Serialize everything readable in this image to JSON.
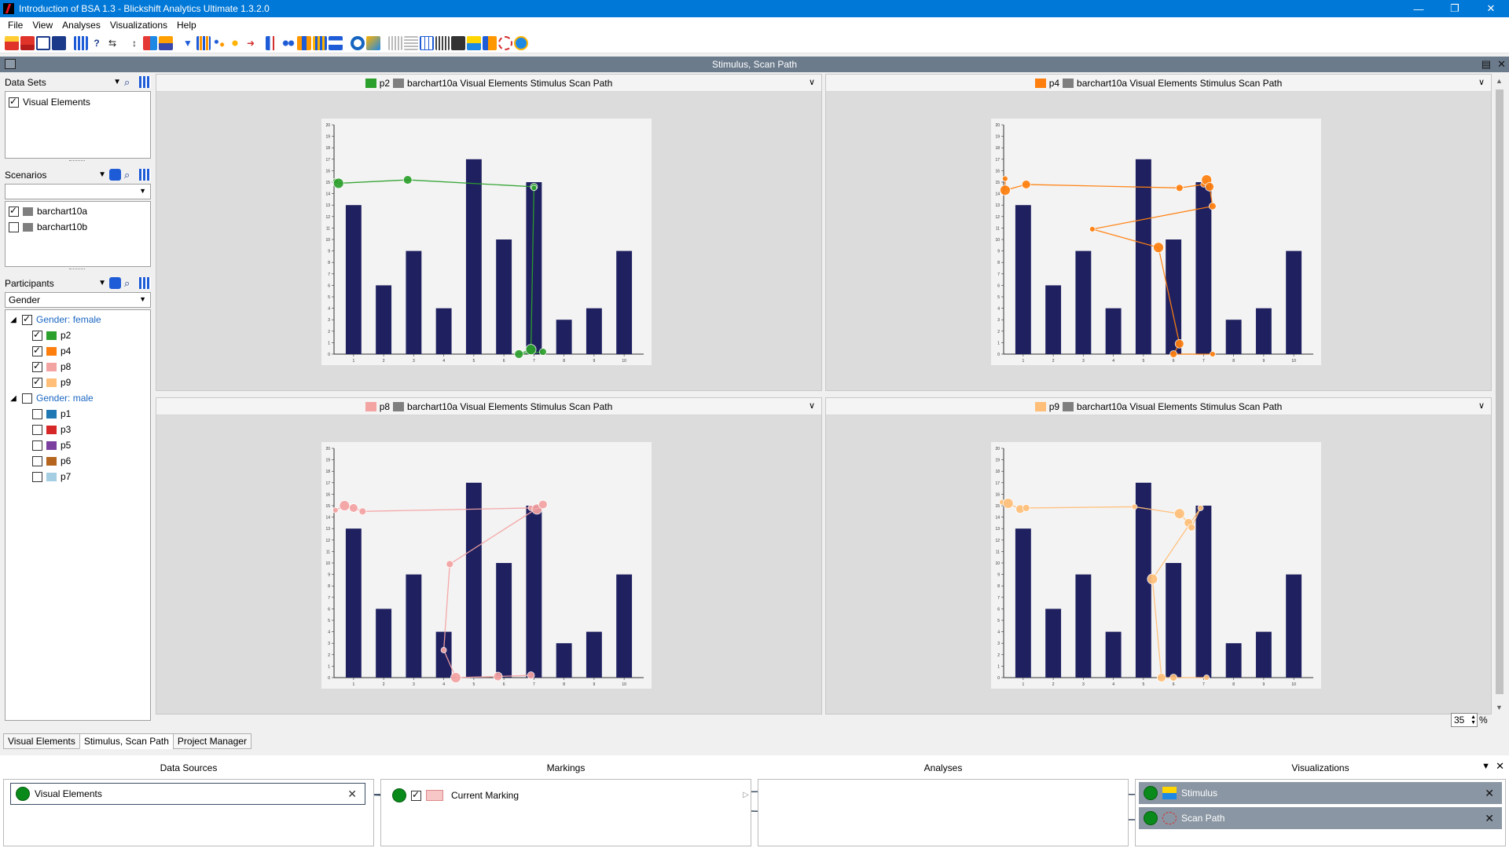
{
  "window": {
    "title": "Introduction of BSA 1.3 - Blickshift Analytics Ultimate 1.3.2.0",
    "controls": [
      "—",
      "❐",
      "✕"
    ]
  },
  "menu": [
    "File",
    "View",
    "Analyses",
    "Visualizations",
    "Help"
  ],
  "panel": {
    "title": "Stimulus, Scan Path"
  },
  "sidebar": {
    "datasets": {
      "title": "Data Sets",
      "items": [
        {
          "label": "Visual Elements",
          "checked": true
        }
      ]
    },
    "scenarios": {
      "title": "Scenarios",
      "items": [
        {
          "label": "barchart10a",
          "checked": true,
          "color": "#7f7f7f"
        },
        {
          "label": "barchart10b",
          "checked": false,
          "color": "#7f7f7f"
        }
      ]
    },
    "participants": {
      "title": "Participants",
      "group_by": "Gender",
      "groups": [
        {
          "label": "Gender: female",
          "checked": true,
          "members": [
            {
              "label": "p2",
              "checked": true,
              "color": "#2ca02c"
            },
            {
              "label": "p4",
              "checked": true,
              "color": "#ff7f0e"
            },
            {
              "label": "p8",
              "checked": true,
              "color": "#f4a3a3"
            },
            {
              "label": "p9",
              "checked": true,
              "color": "#ffbf79"
            }
          ]
        },
        {
          "label": "Gender: male",
          "checked": false,
          "members": [
            {
              "label": "p1",
              "checked": false,
              "color": "#1f77b4"
            },
            {
              "label": "p3",
              "checked": false,
              "color": "#d62728"
            },
            {
              "label": "p5",
              "checked": false,
              "color": "#7b3fa0"
            },
            {
              "label": "p6",
              "checked": false,
              "color": "#b5651d"
            },
            {
              "label": "p7",
              "checked": false,
              "color": "#a6cee3"
            }
          ]
        }
      ]
    }
  },
  "views": [
    {
      "participant": "p2",
      "color": "#2ca02c",
      "label": "barchart10a Visual Elements Stimulus Scan Path"
    },
    {
      "participant": "p4",
      "color": "#ff7f0e",
      "label": "barchart10a Visual Elements Stimulus Scan Path"
    },
    {
      "participant": "p8",
      "color": "#f4a3a3",
      "label": "barchart10a Visual Elements Stimulus Scan Path"
    },
    {
      "participant": "p9",
      "color": "#ffbf79",
      "label": "barchart10a Visual Elements Stimulus Scan Path"
    }
  ],
  "chart_data": {
    "type": "bar",
    "categories": [
      "1",
      "2",
      "3",
      "4",
      "5",
      "6",
      "7",
      "8",
      "9",
      "10"
    ],
    "values": [
      13,
      6,
      9,
      4,
      17,
      10,
      15,
      3,
      4,
      9
    ],
    "ylim": [
      0,
      20
    ],
    "yticks": [
      "0",
      "1",
      "2",
      "3",
      "4",
      "5",
      "6",
      "7",
      "8",
      "9",
      "10",
      "11",
      "12",
      "13",
      "14",
      "15",
      "16",
      "17",
      "18",
      "19",
      "20"
    ],
    "bar_color": "#1f2060"
  },
  "scanpaths": [
    {
      "participant": "p2",
      "points": [
        [
          0.4,
          15.1
        ],
        [
          0.5,
          14.9
        ],
        [
          2.8,
          15.2
        ],
        [
          7.0,
          14.6
        ],
        [
          7.0,
          14.5
        ],
        [
          6.9,
          0.4
        ],
        [
          6.5,
          0.0
        ],
        [
          7.3,
          0.2
        ]
      ]
    },
    {
      "participant": "p4",
      "points": [
        [
          0.4,
          15.3
        ],
        [
          0.4,
          14.3
        ],
        [
          1.1,
          14.8
        ],
        [
          6.2,
          14.5
        ],
        [
          7.0,
          14.8
        ],
        [
          7.1,
          15.2
        ],
        [
          7.2,
          14.6
        ],
        [
          7.3,
          12.9
        ],
        [
          3.3,
          10.9
        ],
        [
          5.5,
          9.3
        ],
        [
          6.2,
          0.9
        ],
        [
          6.0,
          0.0
        ],
        [
          7.3,
          0.0
        ]
      ]
    },
    {
      "participant": "p8",
      "points": [
        [
          0.4,
          14.6
        ],
        [
          0.7,
          15.0
        ],
        [
          1.0,
          14.8
        ],
        [
          1.3,
          14.5
        ],
        [
          6.9,
          14.8
        ],
        [
          7.1,
          14.7
        ],
        [
          7.3,
          15.1
        ],
        [
          4.2,
          9.9
        ],
        [
          4.0,
          2.4
        ],
        [
          4.4,
          0.0
        ],
        [
          5.8,
          0.1
        ],
        [
          6.9,
          0.2
        ]
      ]
    },
    {
      "participant": "p9",
      "points": [
        [
          0.3,
          15.3
        ],
        [
          0.5,
          15.2
        ],
        [
          0.9,
          14.7
        ],
        [
          1.1,
          14.8
        ],
        [
          4.7,
          14.9
        ],
        [
          6.2,
          14.3
        ],
        [
          6.5,
          13.5
        ],
        [
          6.6,
          13.1
        ],
        [
          6.9,
          14.8
        ],
        [
          5.3,
          8.6
        ],
        [
          5.6,
          0.0
        ],
        [
          6.0,
          0.0
        ],
        [
          7.1,
          0.0
        ]
      ]
    }
  ],
  "zoom": {
    "value": "35",
    "unit": "%"
  },
  "tabs": [
    "Visual Elements",
    "Stimulus, Scan Path",
    "Project Manager"
  ],
  "pipeline": {
    "data_sources": {
      "title": "Data Sources",
      "items": [
        "Visual Elements"
      ]
    },
    "markings": {
      "title": "Markings",
      "items": [
        "Current Marking"
      ]
    },
    "analyses": {
      "title": "Analyses",
      "items": []
    },
    "visualizations": {
      "title": "Visualizations",
      "items": [
        "Stimulus",
        "Scan Path"
      ]
    }
  }
}
